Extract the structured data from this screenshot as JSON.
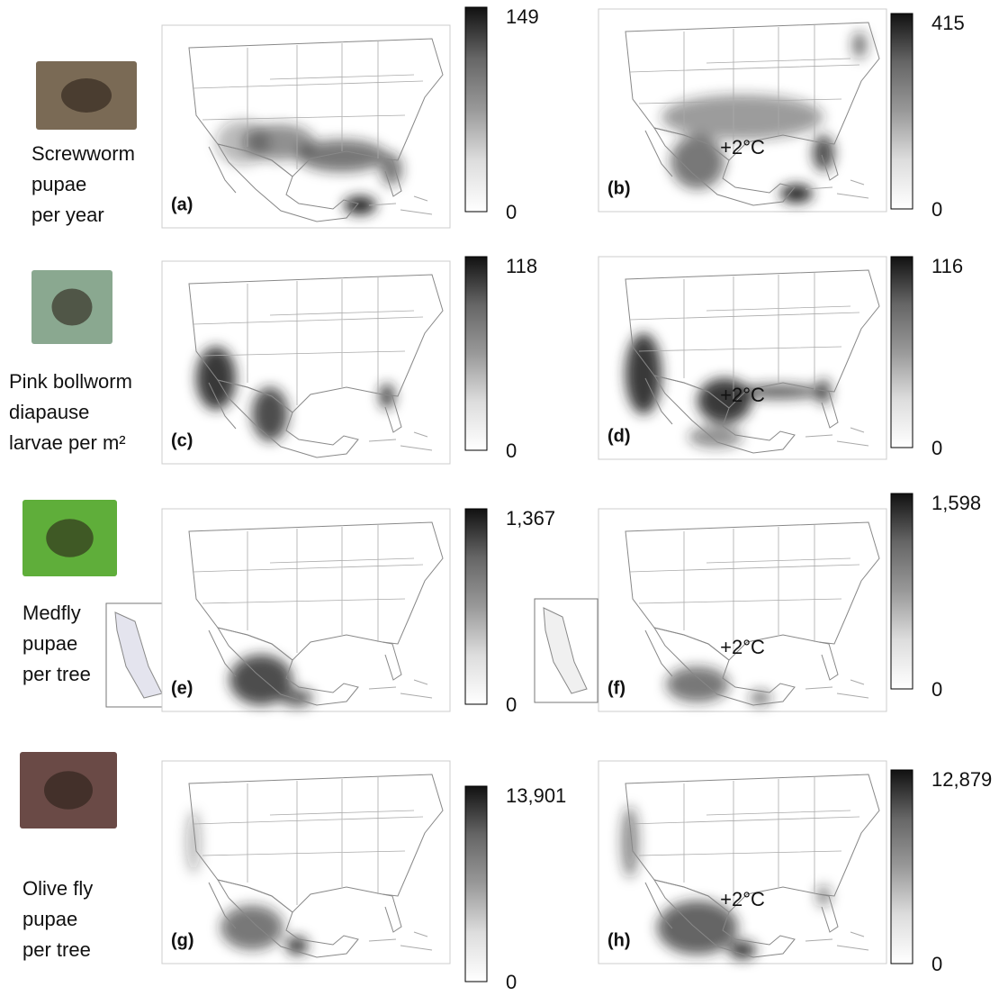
{
  "rows": [
    {
      "species_label": [
        "Screwworm",
        "pupae",
        "per year"
      ],
      "panels": [
        {
          "label": "(a)",
          "scale_max": "149",
          "scale_min": "0"
        },
        {
          "label": "(b)",
          "annotation": "+2°C",
          "scale_max": "415",
          "scale_min": "0"
        }
      ]
    },
    {
      "species_label": [
        "Pink bollworm",
        "diapause",
        "larvae per m²"
      ],
      "panels": [
        {
          "label": "(c)",
          "scale_max": "118",
          "scale_min": "0"
        },
        {
          "label": "(d)",
          "annotation": "+2°C",
          "scale_max": "116",
          "scale_min": "0"
        }
      ]
    },
    {
      "species_label": [
        "Medfly",
        "pupae",
        "per tree"
      ],
      "panels": [
        {
          "label": "(e)",
          "scale_max": "1,367",
          "scale_min": "0"
        },
        {
          "label": "(f)",
          "annotation": "+2°C",
          "scale_max": "1,598",
          "scale_min": "0"
        }
      ]
    },
    {
      "species_label": [
        "Olive fly",
        "pupae",
        "per tree"
      ],
      "panels": [
        {
          "label": "(g)",
          "scale_max": "13,901",
          "scale_min": "0"
        },
        {
          "label": "(h)",
          "annotation": "+2°C",
          "scale_max": "12,879",
          "scale_min": "0"
        }
      ]
    }
  ]
}
